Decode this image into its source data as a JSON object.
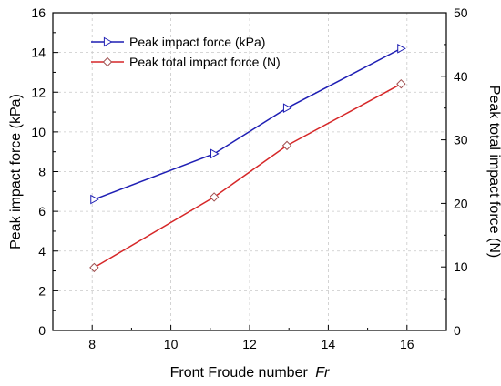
{
  "chart_data": {
    "type": "line",
    "xlabel": "Front Froude number",
    "xlabel_italic": "Fr",
    "ylabel_left": "Peak impact force (kPa)",
    "ylabel_right": "Peak total impact force (N)",
    "xlim": [
      7,
      17
    ],
    "ylim_left": [
      0,
      16
    ],
    "ylim_right": [
      0,
      50
    ],
    "xticks": [
      8,
      10,
      12,
      14,
      16
    ],
    "yticks_left": [
      0,
      2,
      4,
      6,
      8,
      10,
      12,
      14,
      16
    ],
    "yticks_right": [
      0,
      10,
      20,
      30,
      40,
      50
    ],
    "grid": true,
    "legend_position": "top-left",
    "series": [
      {
        "name": "Peak impact force (kPa)",
        "axis": "left",
        "marker": "triangle-right",
        "color": "#1f1fb4",
        "x": [
          8.05,
          11.1,
          12.95,
          15.85
        ],
        "y": [
          6.6,
          8.9,
          11.2,
          14.2
        ]
      },
      {
        "name": "Peak total impact force (N)",
        "axis": "right",
        "marker": "diamond",
        "color": "#d62728",
        "marker_color": "#a05050",
        "x": [
          8.05,
          11.1,
          12.95,
          15.85
        ],
        "y": [
          9.9,
          21.0,
          29.1,
          38.8
        ]
      }
    ]
  }
}
